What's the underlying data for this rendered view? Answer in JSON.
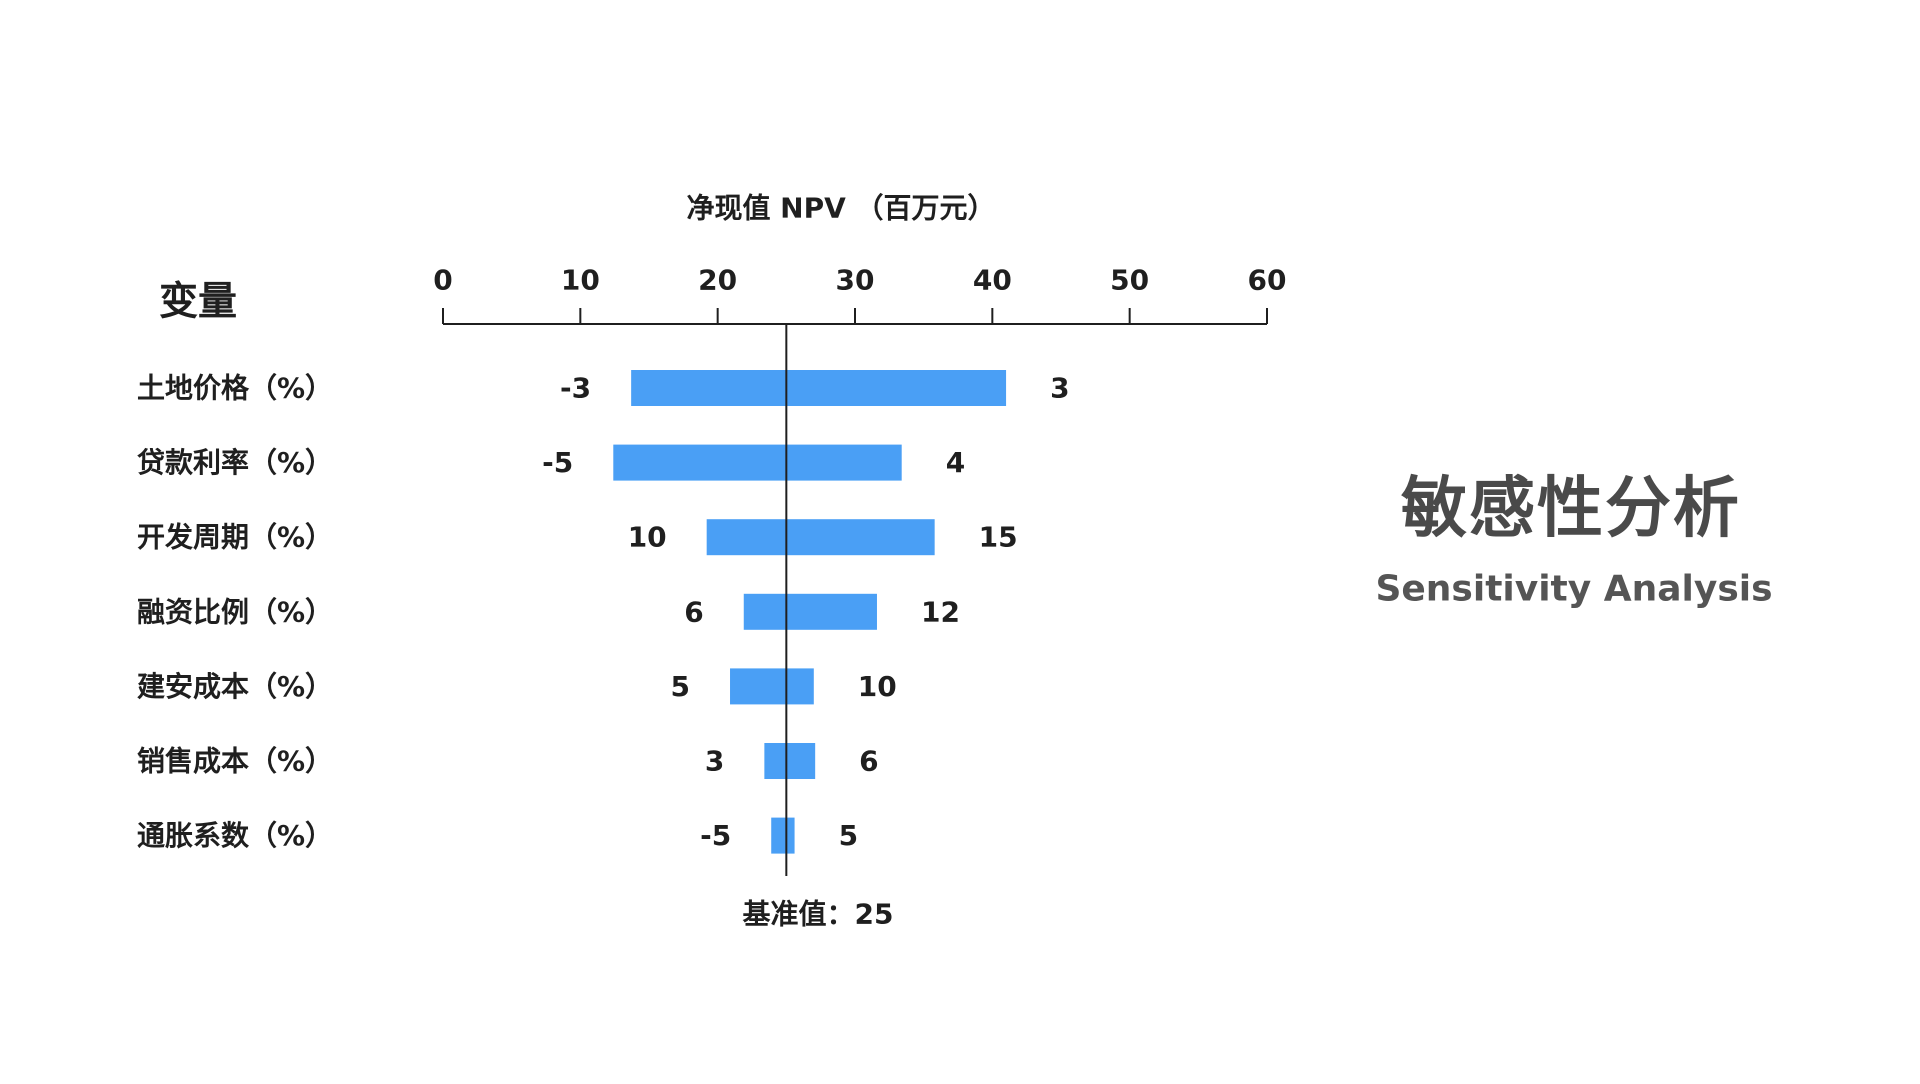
{
  "header": {
    "variable_column_title": "变量"
  },
  "side_title": {
    "zh": "敏感性分析",
    "en": "Sensitivity Analysis"
  },
  "chart_data": {
    "type": "bar",
    "orientation": "horizontal",
    "style": "tornado",
    "title": "",
    "xlabel": "净现值 NPV （百万元）",
    "ylabel": "",
    "xlim": [
      0,
      60
    ],
    "x_ticks": [
      0,
      10,
      20,
      30,
      40,
      50,
      60
    ],
    "x_axis_position": "top",
    "grid": false,
    "legend": "none",
    "bar_color": "#4a9ff5",
    "baseline": {
      "value": 25,
      "label": "基准值：25"
    },
    "categories": [
      "土地价格（%）",
      "贷款利率（%）",
      "开发周期（%）",
      "融资比例（%）",
      "建安成本（%）",
      "销售成本（%）",
      "通胀系数（%）"
    ],
    "low": [
      13.7,
      12.4,
      19.2,
      21.9,
      20.9,
      23.4,
      23.9
    ],
    "high": [
      41.0,
      33.4,
      35.8,
      31.6,
      27.0,
      27.1,
      25.6
    ],
    "low_labels": [
      "-3",
      "-5",
      "10",
      "6",
      "5",
      "3",
      "-5"
    ],
    "high_labels": [
      "3",
      "4",
      "15",
      "12",
      "10",
      "6",
      "5"
    ]
  }
}
